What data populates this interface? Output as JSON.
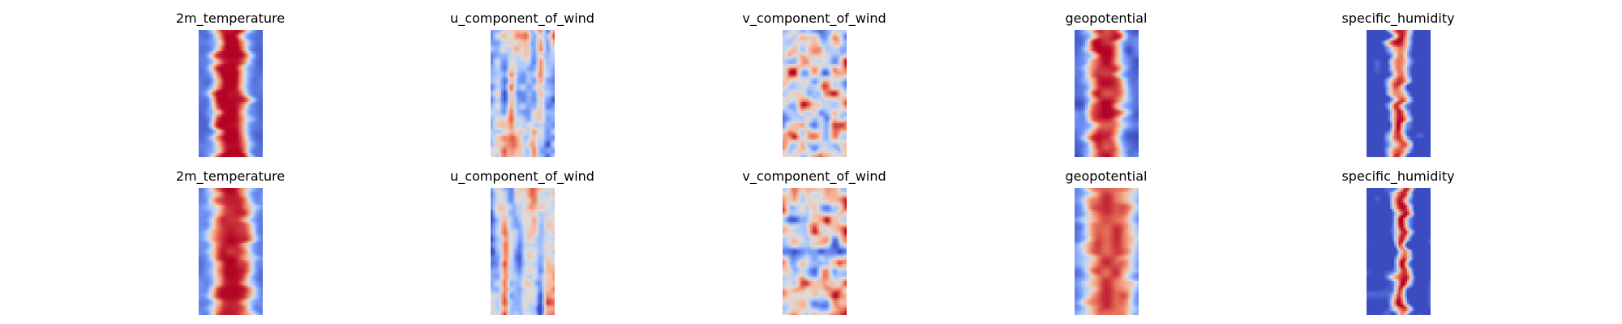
{
  "figure": {
    "colormap": "coolwarm",
    "colormap_stops": [
      "#3b4cc0",
      "#6f92f3",
      "#aac7fd",
      "#dddcdc",
      "#f7b89c",
      "#e7745b",
      "#b40426"
    ],
    "rows": [
      {
        "panels": [
          {
            "title": "2m_temperature",
            "pattern": "band",
            "band_width": 0.55,
            "band_center": 0.5,
            "band_strength": 0.92,
            "noise": 0.1,
            "bias": 0.35,
            "seed": 11
          },
          {
            "title": "u_component_of_wind",
            "pattern": "streaks",
            "noise": 0.55,
            "bias": -0.05,
            "seed": 23
          },
          {
            "title": "v_component_of_wind",
            "pattern": "blobs",
            "noise": 0.65,
            "bias": 0.05,
            "seed": 37
          },
          {
            "title": "geopotential",
            "pattern": "band",
            "band_width": 0.55,
            "band_center": 0.5,
            "band_strength": 0.85,
            "noise": 0.18,
            "bias": 0.1,
            "seed": 41
          },
          {
            "title": "specific_humidity",
            "pattern": "narrow",
            "band_width": 0.28,
            "band_center": 0.5,
            "band_strength": 1.0,
            "noise": 0.35,
            "bias": -0.55,
            "seed": 53
          }
        ]
      },
      {
        "panels": [
          {
            "title": "2m_temperature",
            "pattern": "band",
            "band_width": 0.62,
            "band_center": 0.52,
            "band_strength": 0.85,
            "noise": 0.12,
            "bias": 0.3,
            "seed": 61
          },
          {
            "title": "u_component_of_wind",
            "pattern": "streaks",
            "noise": 0.45,
            "bias": -0.2,
            "seed": 71
          },
          {
            "title": "v_component_of_wind",
            "pattern": "blobs",
            "noise": 0.6,
            "bias": 0.05,
            "seed": 83
          },
          {
            "title": "geopotential",
            "pattern": "band",
            "band_width": 0.75,
            "band_center": 0.55,
            "band_strength": 0.75,
            "noise": 0.15,
            "bias": 0.2,
            "seed": 97
          },
          {
            "title": "specific_humidity",
            "pattern": "narrow",
            "band_width": 0.22,
            "band_center": 0.55,
            "band_strength": 1.0,
            "noise": 0.35,
            "bias": -0.55,
            "seed": 101
          }
        ]
      }
    ]
  }
}
